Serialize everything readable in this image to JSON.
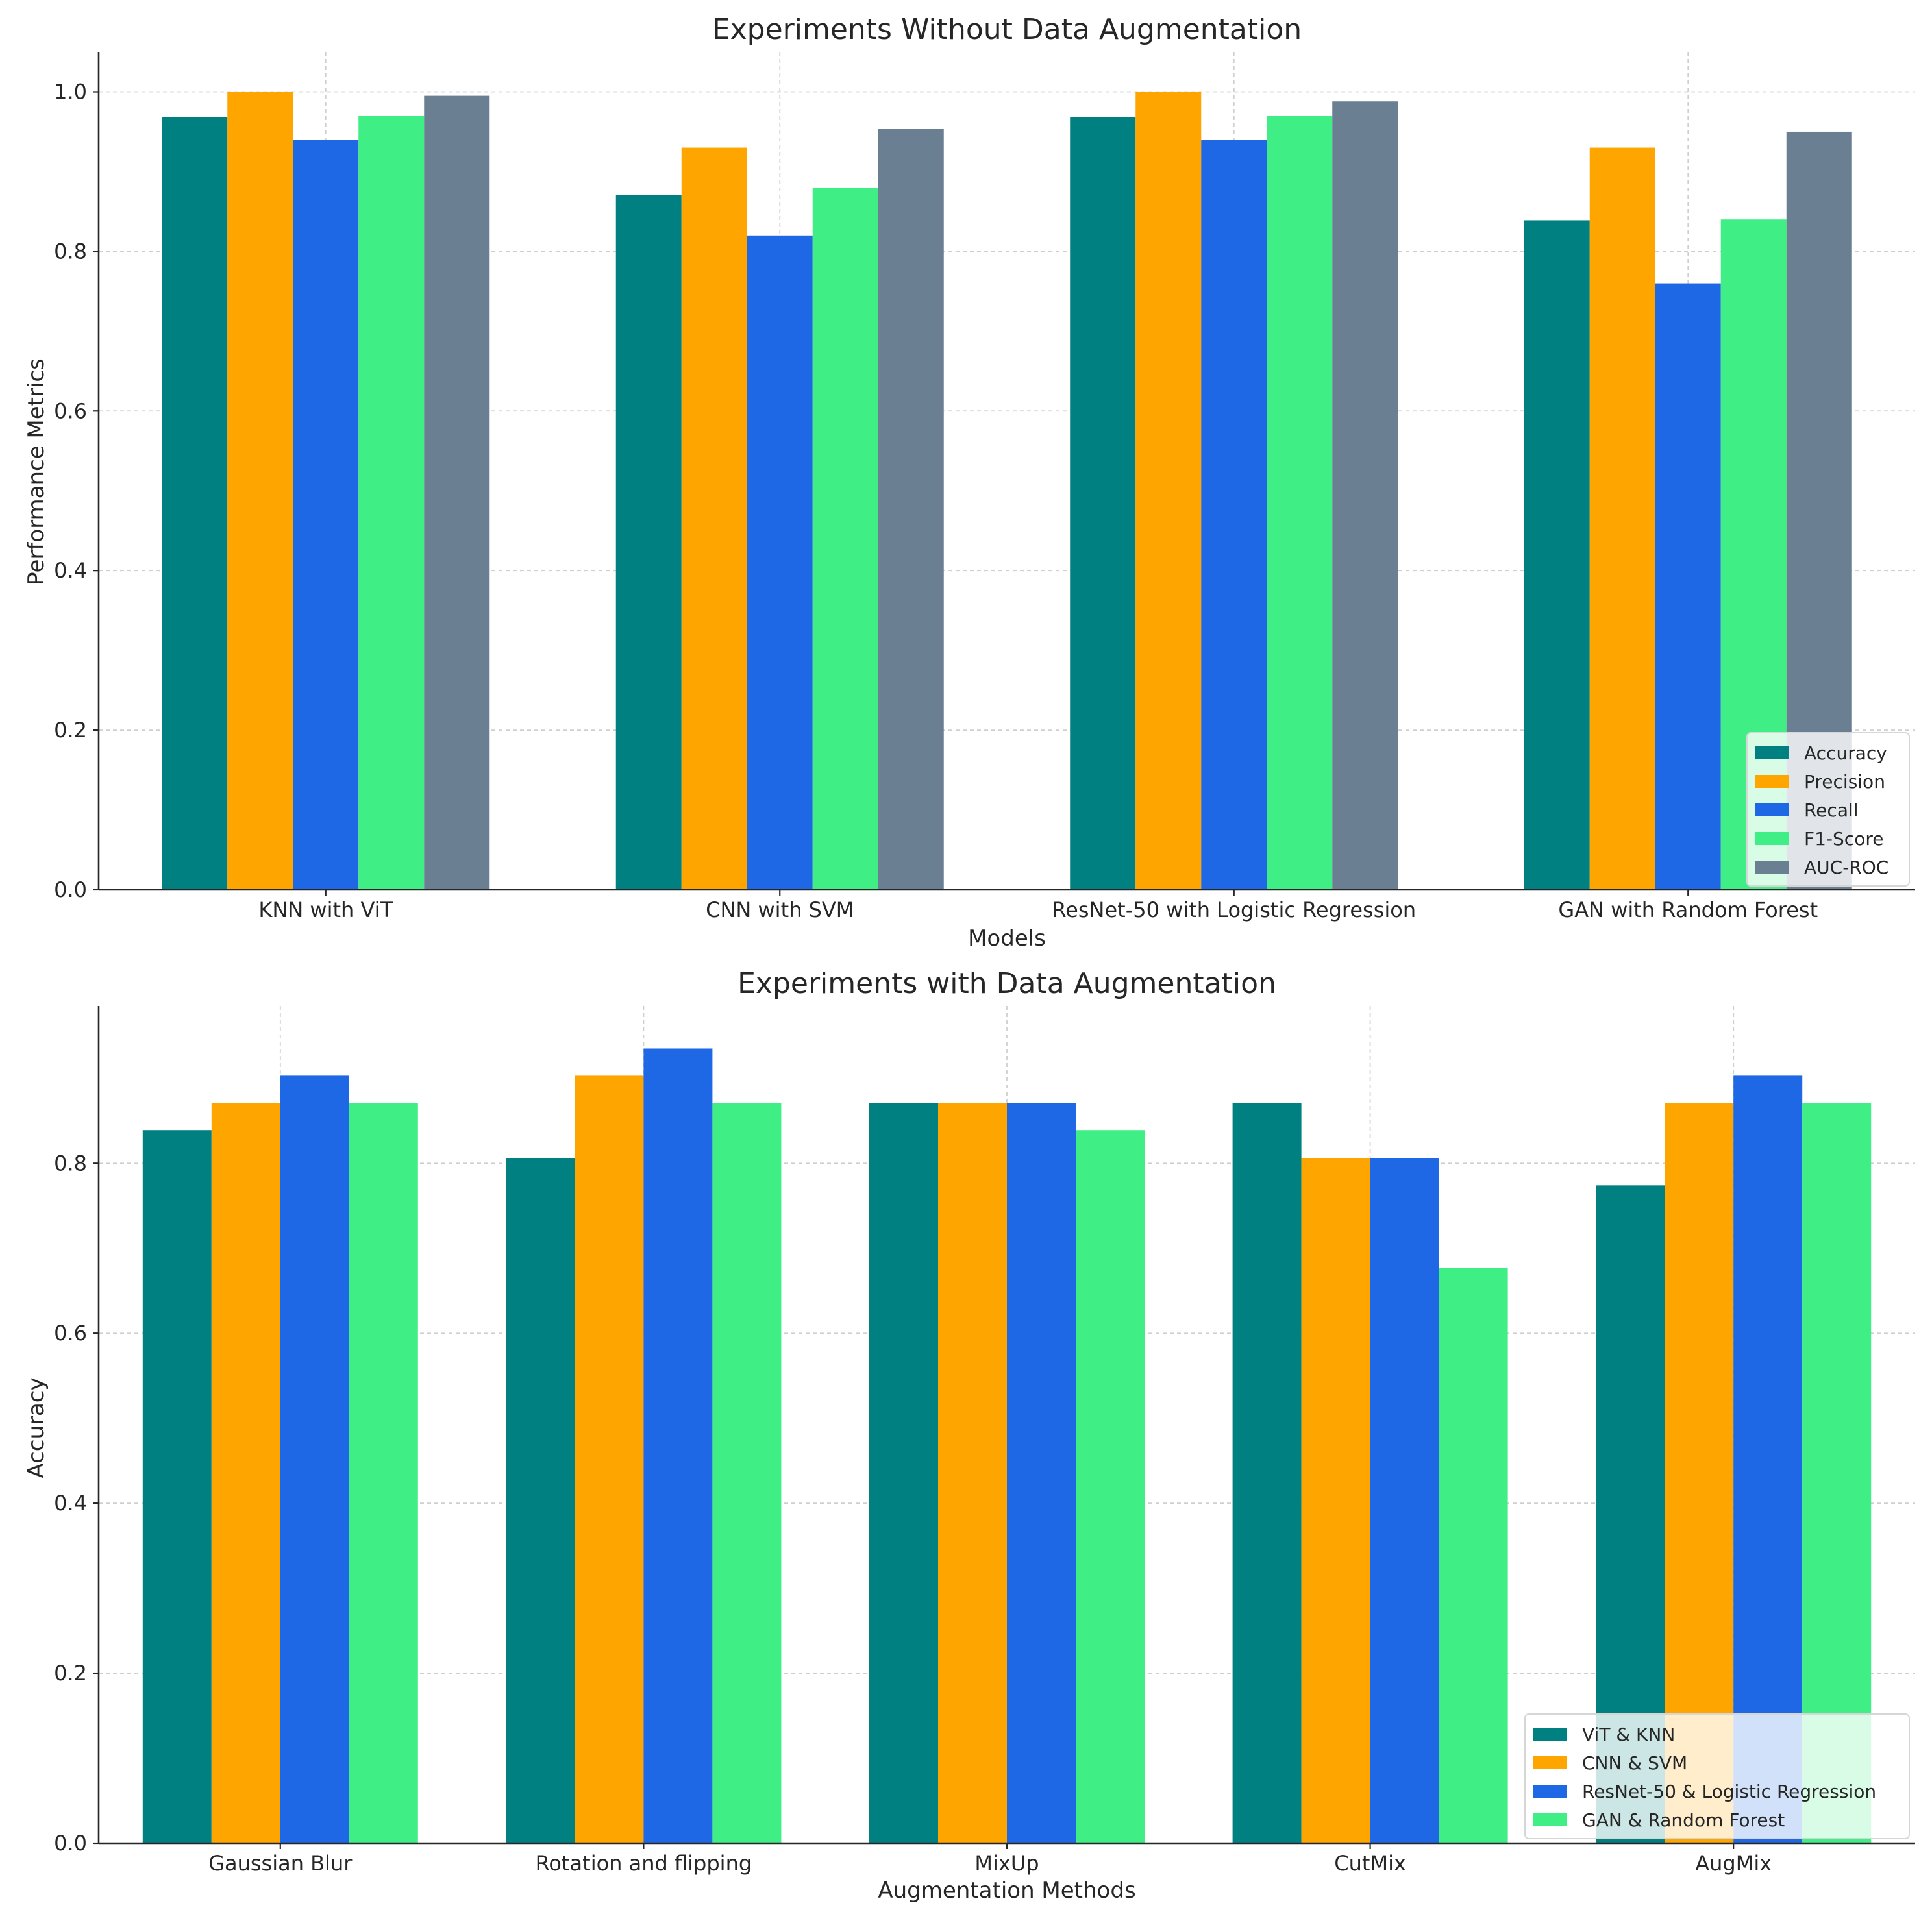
{
  "chart_data": [
    {
      "type": "bar",
      "title": "Experiments Without Data Augmentation",
      "xlabel": "Models",
      "ylabel": "Performance Metrics",
      "ylim": [
        0,
        1.05
      ],
      "yticks": [
        "0.0",
        "0.2",
        "0.4",
        "0.6",
        "0.8",
        "1.0"
      ],
      "grid": true,
      "legend_position": "lower-right",
      "categories": [
        "KNN with ViT",
        "CNN with SVM",
        "ResNet-50 with Logistic Regression",
        "GAN with Random Forest"
      ],
      "series": [
        {
          "name": "Accuracy",
          "color": "#008080",
          "values": [
            0.968,
            0.871,
            0.968,
            0.839
          ]
        },
        {
          "name": "Precision",
          "color": "#FFA500",
          "values": [
            1.0,
            0.93,
            1.0,
            0.93
          ]
        },
        {
          "name": "Recall",
          "color": "#1F68E5",
          "values": [
            0.94,
            0.82,
            0.94,
            0.76
          ]
        },
        {
          "name": "F1-Score",
          "color": "#40EE86",
          "values": [
            0.97,
            0.88,
            0.97,
            0.84
          ]
        },
        {
          "name": "AUC-ROC",
          "color": "#6A7F91",
          "values": [
            0.995,
            0.954,
            0.988,
            0.95
          ]
        }
      ]
    },
    {
      "type": "bar",
      "title": "Experiments with Data Augmentation",
      "xlabel": "Augmentation Methods",
      "ylabel": "Accuracy",
      "ylim": [
        0,
        0.985
      ],
      "yticks": [
        "0.0",
        "0.2",
        "0.4",
        "0.6",
        "0.8"
      ],
      "grid": true,
      "legend_position": "lower-right",
      "categories": [
        "Gaussian Blur",
        "Rotation and flipping",
        "MixUp",
        "CutMix",
        "AugMix"
      ],
      "series": [
        {
          "name": "ViT & KNN",
          "color": "#008080",
          "values": [
            0.839,
            0.806,
            0.871,
            0.871,
            0.774
          ]
        },
        {
          "name": "CNN & SVM",
          "color": "#FFA500",
          "values": [
            0.871,
            0.903,
            0.871,
            0.806,
            0.871
          ]
        },
        {
          "name": "ResNet-50 & Logistic Regression",
          "color": "#1F68E5",
          "values": [
            0.903,
            0.935,
            0.871,
            0.806,
            0.903
          ]
        },
        {
          "name": "GAN & Random Forest",
          "color": "#40EE86",
          "values": [
            0.871,
            0.871,
            0.839,
            0.677,
            0.871
          ]
        }
      ]
    }
  ]
}
